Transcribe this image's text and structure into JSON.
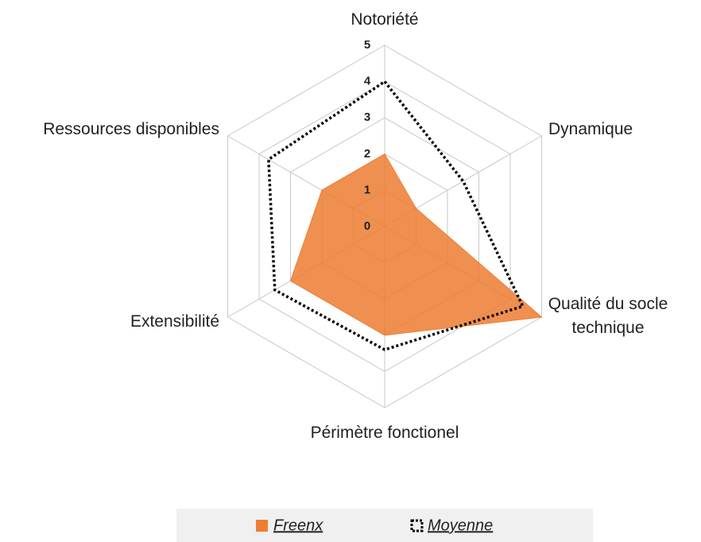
{
  "chart_data": {
    "type": "radar",
    "categories": [
      "Notoriété",
      "Dynamique",
      "Qualité du socle technique",
      "Périmètre fonctionel",
      "Extensibilité",
      "Ressources disponibles"
    ],
    "rlim": [
      0,
      5
    ],
    "rticks": [
      0,
      1,
      2,
      3,
      4,
      5
    ],
    "grid": true,
    "legend": "bottom",
    "series": [
      {
        "name": "Freenx",
        "color": "#ed7d31",
        "style": "filled",
        "values": [
          2,
          1,
          5,
          3,
          3,
          2
        ]
      },
      {
        "name": "Moyenne",
        "color": "#000000",
        "style": "dotted",
        "values": [
          4,
          2.5,
          4.4,
          3.4,
          3.5,
          3.7
        ]
      }
    ]
  }
}
